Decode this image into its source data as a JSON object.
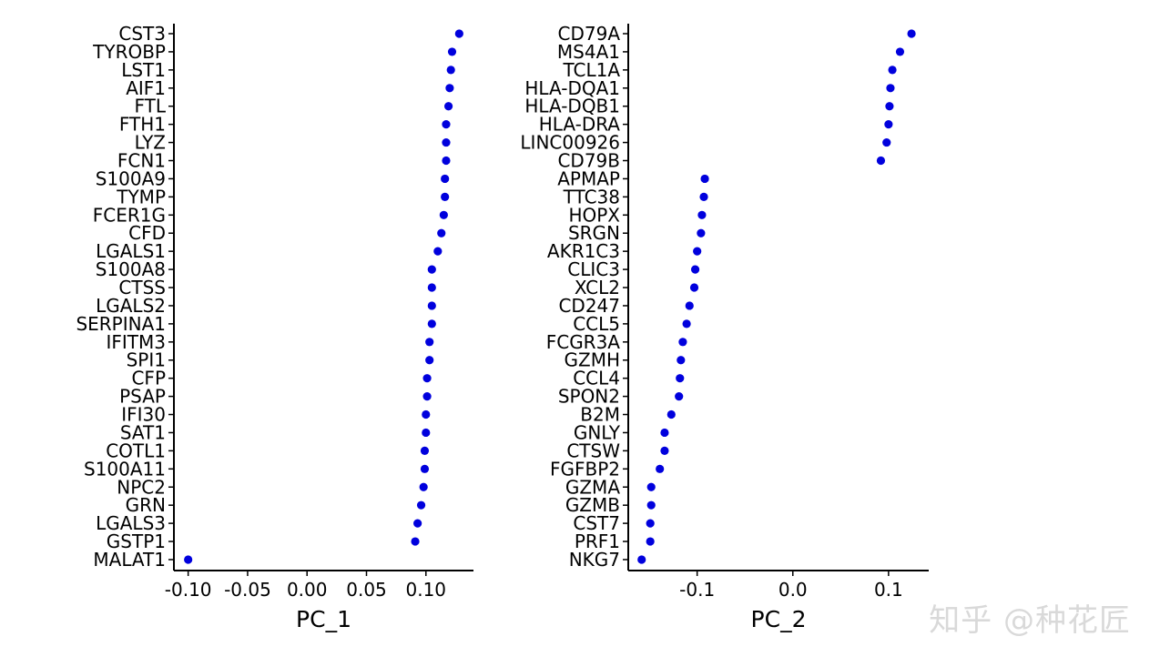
{
  "chart_data": [
    {
      "type": "scatter",
      "xlabel": "PC_1",
      "xlim": [
        -0.112,
        0.14
      ],
      "xticks": [
        -0.1,
        -0.05,
        0.0,
        0.05,
        0.1
      ],
      "xtick_labels": [
        "-0.10",
        "-0.05",
        "0.00",
        "0.05",
        "0.10"
      ],
      "point_color": "#0000dd",
      "grid": false,
      "genes": [
        "CST3",
        "TYROBP",
        "LST1",
        "AIF1",
        "FTL",
        "FTH1",
        "LYZ",
        "FCN1",
        "S100A9",
        "TYMP",
        "FCER1G",
        "CFD",
        "LGALS1",
        "S100A8",
        "CTSS",
        "LGALS2",
        "SERPINA1",
        "IFITM3",
        "SPI1",
        "CFP",
        "PSAP",
        "IFI30",
        "SAT1",
        "COTL1",
        "S100A11",
        "NPC2",
        "GRN",
        "LGALS3",
        "GSTP1",
        "MALAT1"
      ],
      "values": [
        0.128,
        0.122,
        0.121,
        0.12,
        0.119,
        0.117,
        0.117,
        0.117,
        0.116,
        0.116,
        0.115,
        0.113,
        0.11,
        0.105,
        0.105,
        0.105,
        0.105,
        0.103,
        0.103,
        0.101,
        0.101,
        0.1,
        0.1,
        0.099,
        0.099,
        0.098,
        0.096,
        0.093,
        0.091,
        -0.1
      ]
    },
    {
      "type": "scatter",
      "xlabel": "PC_2",
      "xlim": [
        -0.172,
        0.142
      ],
      "xticks": [
        -0.1,
        0.0,
        0.1
      ],
      "xtick_labels": [
        "-0.1",
        "0.0",
        "0.1"
      ],
      "point_color": "#0000dd",
      "grid": false,
      "genes": [
        "CD79A",
        "MS4A1",
        "TCL1A",
        "HLA-DQA1",
        "HLA-DQB1",
        "HLA-DRA",
        "LINC00926",
        "CD79B",
        "APMAP",
        "TTC38",
        "HOPX",
        "SRGN",
        "AKR1C3",
        "CLIC3",
        "XCL2",
        "CD247",
        "CCL5",
        "FCGR3A",
        "GZMH",
        "CCL4",
        "SPON2",
        "B2M",
        "GNLY",
        "CTSW",
        "FGFBP2",
        "GZMA",
        "GZMB",
        "CST7",
        "PRF1",
        "NKG7"
      ],
      "values": [
        0.124,
        0.112,
        0.104,
        0.102,
        0.101,
        0.1,
        0.098,
        0.092,
        -0.092,
        -0.093,
        -0.095,
        -0.096,
        -0.1,
        -0.102,
        -0.103,
        -0.108,
        -0.111,
        -0.115,
        -0.117,
        -0.118,
        -0.119,
        -0.127,
        -0.134,
        -0.134,
        -0.139,
        -0.148,
        -0.148,
        -0.149,
        -0.149,
        -0.158
      ]
    }
  ],
  "watermark": {
    "text": "知乎 @种花匠"
  }
}
